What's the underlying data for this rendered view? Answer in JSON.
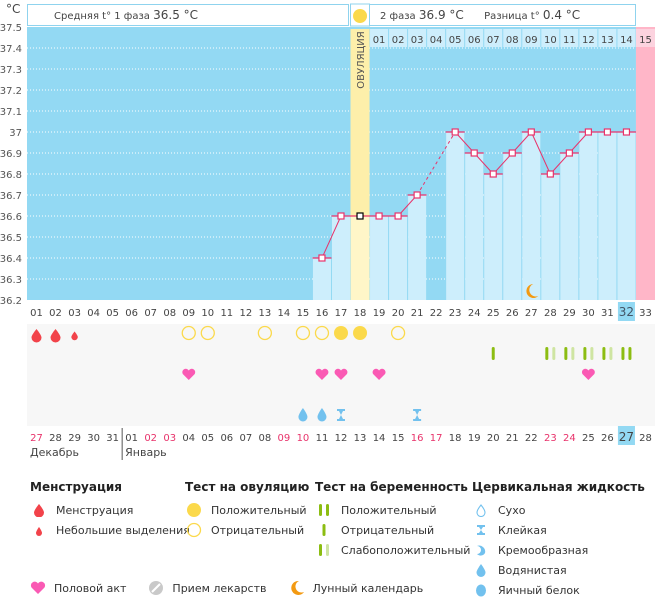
{
  "header": {
    "unit_label": "°C",
    "phase1_label": "Средняя t° 1 фаза",
    "phase1_value": "36.5 °C",
    "phase2_label": "2 фаза",
    "phase2_value": "36.9 °C",
    "diff_label": "Разница t°",
    "diff_value": "0.4 °C",
    "ovulation_label": "ОВУЛЯЦИЯ"
  },
  "colors": {
    "phase1_bg": "#93d9f3",
    "phase2_bar": "#cdeefc",
    "ovulation_bg": "#fdefaa",
    "next_cycle_bg": "#ffb6c8",
    "line": "#e8336b",
    "current_day_bg": "#93d9f3",
    "weekend_red": "#e8336b",
    "menstruation": "#f2434a",
    "ov_test": "#fbd94b",
    "preg_dark": "#8cbd12",
    "preg_light": "#cfe5a2",
    "heart": "#fa5ab4",
    "fluid": "#72c1ee",
    "moon": "#f39a12"
  },
  "chart_data": {
    "type": "line",
    "title": "",
    "xlabel": "",
    "ylabel": "°C",
    "ylim": [
      36.2,
      37.5
    ],
    "yticks": [
      "37.5",
      "37.4",
      "37.3",
      "37.2",
      "37.1",
      "37",
      "36.9",
      "36.8",
      "36.7",
      "36.6",
      "36.5",
      "36.4",
      "36.3",
      "36.2"
    ],
    "cycle_days": [
      "01",
      "02",
      "03",
      "04",
      "05",
      "06",
      "07",
      "08",
      "09",
      "10",
      "11",
      "12",
      "13",
      "14",
      "15",
      "16",
      "17",
      "18",
      "19",
      "20",
      "21",
      "22",
      "23",
      "24",
      "25",
      "26",
      "27",
      "28",
      "29",
      "30",
      "31",
      "32",
      "33"
    ],
    "dates": [
      "27",
      "28",
      "29",
      "30",
      "31",
      "01",
      "02",
      "03",
      "04",
      "05",
      "06",
      "07",
      "08",
      "09",
      "10",
      "11",
      "12",
      "13",
      "14",
      "15",
      "16",
      "17",
      "18",
      "19",
      "20",
      "21",
      "22",
      "23",
      "24",
      "25",
      "26",
      "27",
      "28"
    ],
    "date_weekend": [
      true,
      false,
      false,
      false,
      false,
      false,
      true,
      true,
      false,
      false,
      false,
      false,
      false,
      true,
      true,
      false,
      false,
      false,
      false,
      false,
      true,
      true,
      false,
      false,
      false,
      false,
      false,
      true,
      true,
      false,
      false,
      false,
      false
    ],
    "months": [
      {
        "label": "Декабрь",
        "start_index": 0
      },
      {
        "label": "Январь",
        "start_index": 5
      }
    ],
    "luteal_days": [
      "01",
      "02",
      "03",
      "04",
      "05",
      "06",
      "07",
      "08",
      "09",
      "10",
      "11",
      "12",
      "13",
      "14",
      "15"
    ],
    "ovulation_day": 18,
    "current_day": 32,
    "next_cycle_day": 33,
    "temperatures": [
      {
        "day": 16,
        "value": 36.4
      },
      {
        "day": 17,
        "value": 36.6
      },
      {
        "day": 18,
        "value": 36.6
      },
      {
        "day": 19,
        "value": 36.6
      },
      {
        "day": 20,
        "value": 36.6
      },
      {
        "day": 21,
        "value": 36.7
      },
      {
        "day": 23,
        "value": 37.0
      },
      {
        "day": 24,
        "value": 36.9
      },
      {
        "day": 25,
        "value": 36.8
      },
      {
        "day": 26,
        "value": 36.9
      },
      {
        "day": 27,
        "value": 37.0
      },
      {
        "day": 28,
        "value": 36.8
      },
      {
        "day": 29,
        "value": 36.9
      },
      {
        "day": 30,
        "value": 37.0
      },
      {
        "day": 31,
        "value": 37.0
      },
      {
        "day": 32,
        "value": 37.0
      }
    ],
    "moon_day": 27,
    "menstruation": [
      {
        "day": 1,
        "type": "full"
      },
      {
        "day": 2,
        "type": "full"
      },
      {
        "day": 3,
        "type": "light"
      }
    ],
    "ovulation_tests": [
      {
        "day": 9,
        "result": "negative"
      },
      {
        "day": 10,
        "result": "negative"
      },
      {
        "day": 13,
        "result": "negative"
      },
      {
        "day": 15,
        "result": "negative"
      },
      {
        "day": 16,
        "result": "negative"
      },
      {
        "day": 17,
        "result": "positive"
      },
      {
        "day": 18,
        "result": "positive"
      },
      {
        "day": 20,
        "result": "negative"
      }
    ],
    "pregnancy_tests": [
      {
        "day": 25,
        "result": "negative"
      },
      {
        "day": 28,
        "result": "weak"
      },
      {
        "day": 29,
        "result": "weak"
      },
      {
        "day": 30,
        "result": "weak"
      },
      {
        "day": 31,
        "result": "weak"
      },
      {
        "day": 32,
        "result": "positive"
      }
    ],
    "intercourse_days": [
      9,
      16,
      17,
      19,
      30
    ],
    "cervical_fluid": [
      {
        "day": 15,
        "type": "watery"
      },
      {
        "day": 16,
        "type": "watery"
      },
      {
        "day": 17,
        "type": "sticky"
      },
      {
        "day": 21,
        "type": "sticky"
      }
    ]
  },
  "legend": {
    "menstruation": {
      "title": "Менструация",
      "items": [
        "Менструация",
        "Небольшие выделения"
      ]
    },
    "ovulation_test": {
      "title": "Тест на овуляцию",
      "items": [
        "Положительный",
        "Отрицательный"
      ]
    },
    "pregnancy_test": {
      "title": "Тест на беременность",
      "items": [
        "Положительный",
        "Отрицательный",
        "Слабоположительный"
      ]
    },
    "cervical_fluid": {
      "title": "Цервикальная жидкость",
      "items": [
        "Сухо",
        "Клейкая",
        "Кремообразная",
        "Водянистая",
        "Яичный белок"
      ]
    },
    "misc": [
      "Половой акт",
      "Прием лекарств",
      "Лунный календарь"
    ]
  }
}
